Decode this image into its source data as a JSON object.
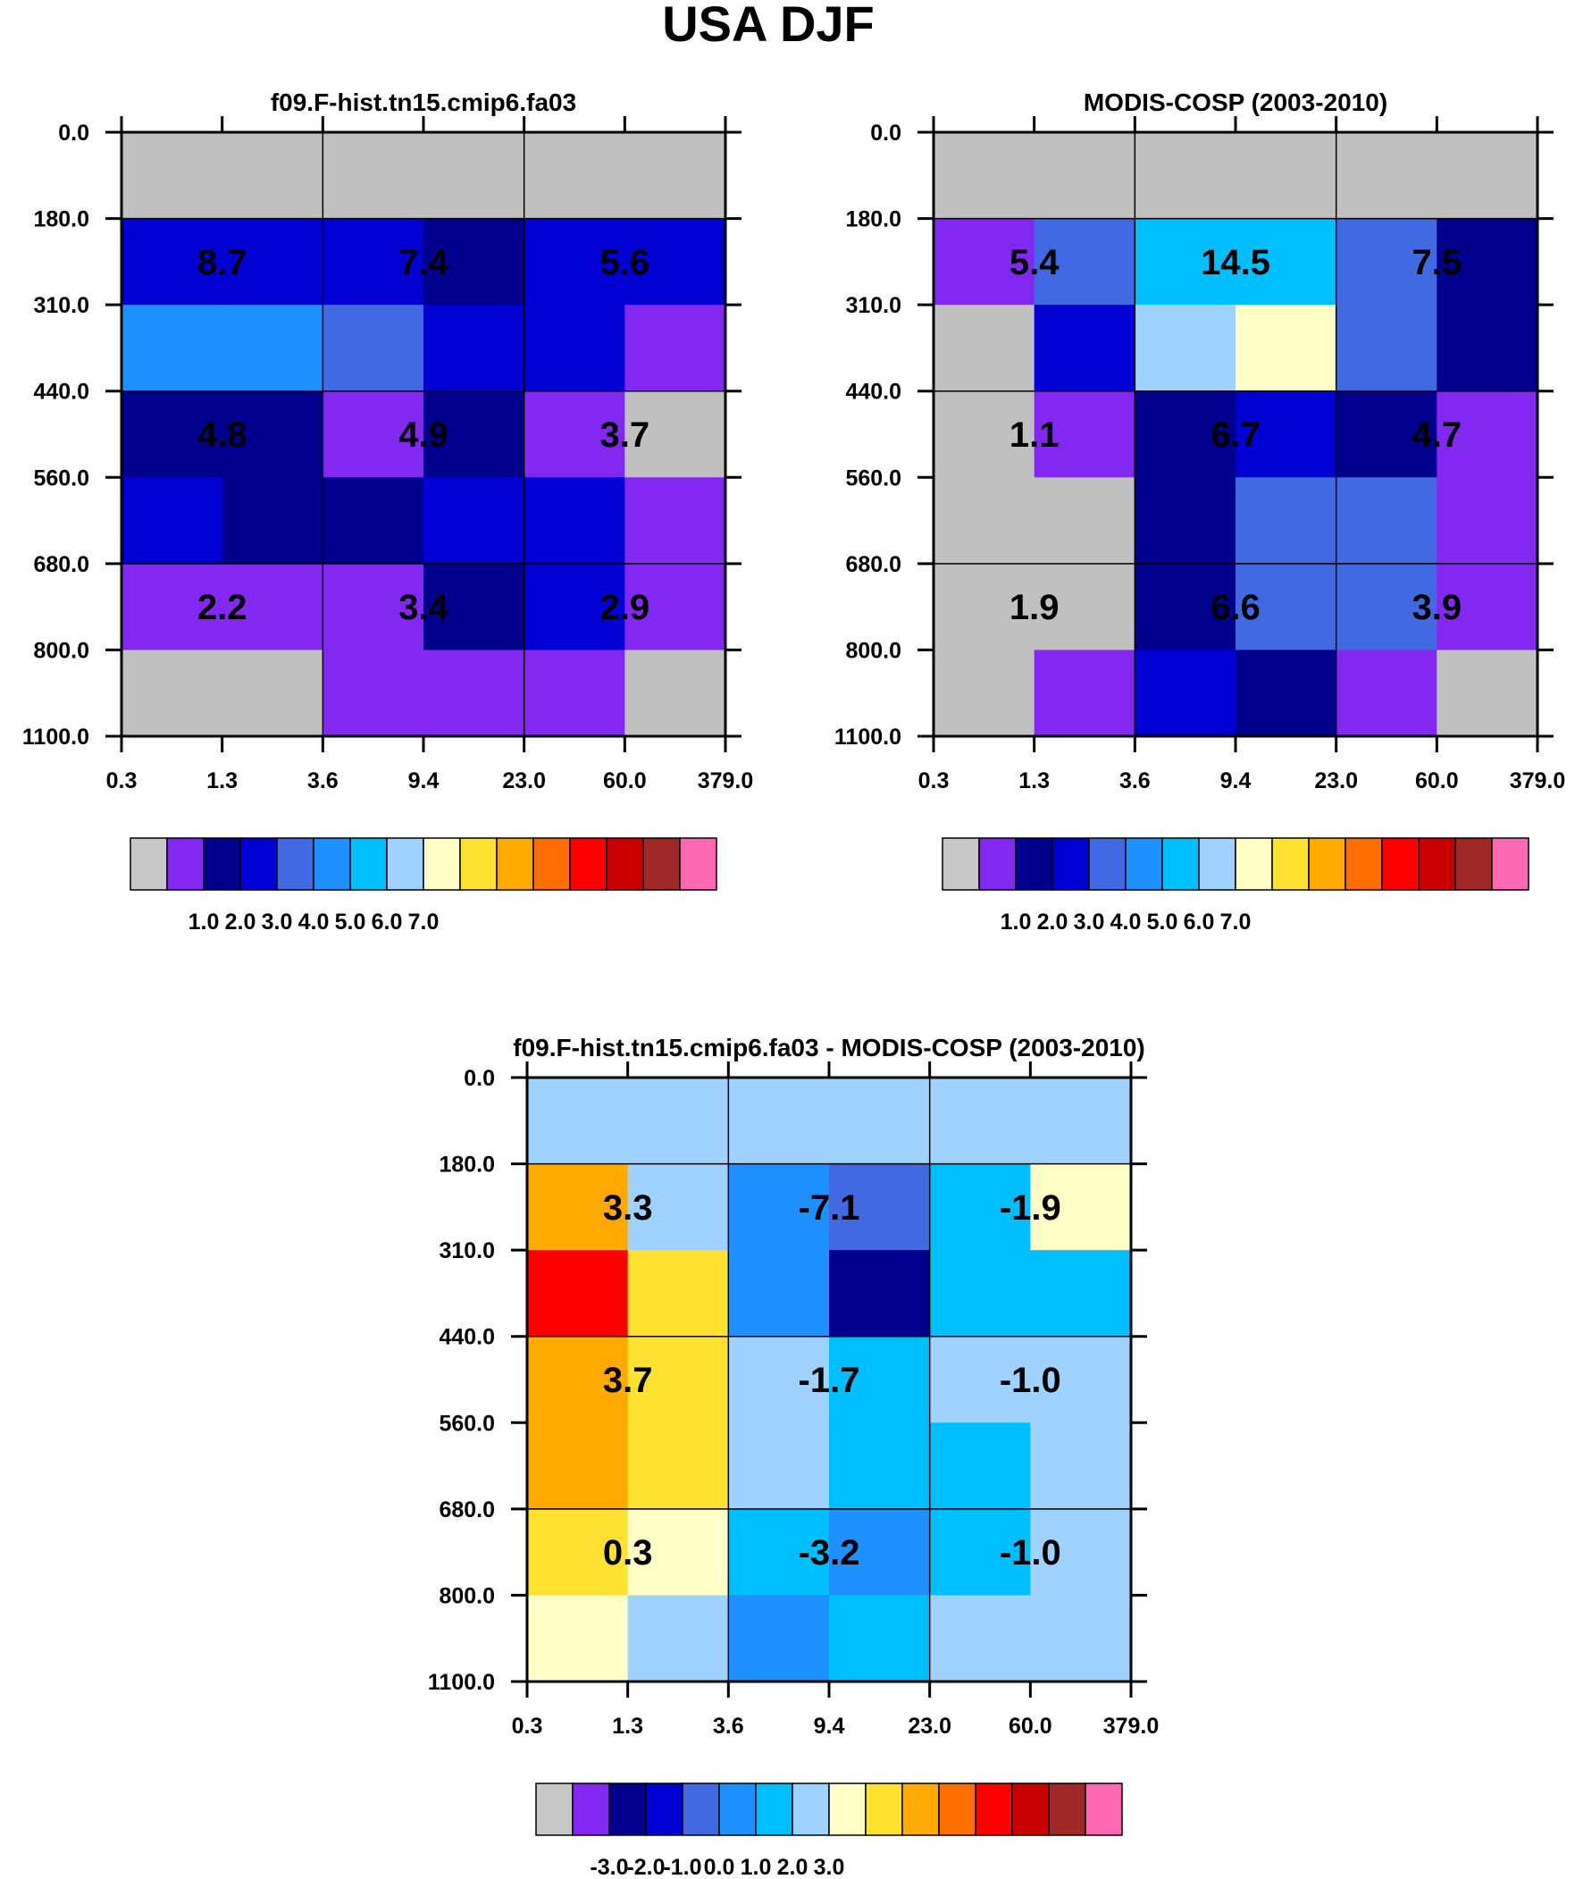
{
  "title": "USA DJF",
  "y_ticks": [
    "0.0",
    "180.0",
    "310.0",
    "440.0",
    "560.0",
    "680.0",
    "800.0",
    "1100.0"
  ],
  "x_ticks": [
    "0.3",
    "1.3",
    "3.6",
    "9.4",
    "23.0",
    "60.0",
    "379.0"
  ],
  "palette": [
    "#c8c8c8",
    "#8228f0",
    "#00008c",
    "#0000d2",
    "#4169e1",
    "#1e90ff",
    "#00bfff",
    "#a0d2ff",
    "#ffffc8",
    "#ffe132",
    "#ffaa00",
    "#ff6e00",
    "#ff0000",
    "#c80000",
    "#a02828",
    "#ff69b4"
  ],
  "chart_data": [
    {
      "type": "heatmap",
      "title": "f09.F-hist.tn15.cmip6.fa03",
      "ylim": [
        1100.0,
        0.0
      ],
      "grid": true,
      "cells": [
        [
          "#c0c0c0",
          "#c0c0c0",
          "#c0c0c0",
          "#c0c0c0",
          "#c0c0c0",
          "#c0c0c0"
        ],
        [
          "#0000d2",
          "#0000d2",
          "#0000d2",
          "#00008c",
          "#0000d2",
          "#0000d2"
        ],
        [
          "#1e90ff",
          "#1e90ff",
          "#4169e1",
          "#0000d2",
          "#0000d2",
          "#8228f0"
        ],
        [
          "#00008c",
          "#00008c",
          "#8228f0",
          "#00008c",
          "#8228f0",
          "#c0c0c0"
        ],
        [
          "#0000d2",
          "#00008c",
          "#00008c",
          "#0000d2",
          "#0000d2",
          "#8228f0"
        ],
        [
          "#8228f0",
          "#8228f0",
          "#8228f0",
          "#00008c",
          "#0000d2",
          "#8228f0"
        ],
        [
          "#c0c0c0",
          "#c0c0c0",
          "#8228f0",
          "#8228f0",
          "#8228f0",
          "#c0c0c0"
        ]
      ],
      "labels": [
        [
          "8.7",
          "7.4",
          "5.6"
        ],
        [
          "4.8",
          "4.9",
          "3.7"
        ],
        [
          "2.2",
          "3.4",
          "2.9"
        ]
      ],
      "colorbar": {
        "labels": [
          "1.0",
          "2.0",
          "3.0",
          "4.0",
          "5.0",
          "6.0",
          "7.0"
        ]
      }
    },
    {
      "type": "heatmap",
      "title": "MODIS-COSP (2003-2010)",
      "ylim": [
        1100.0,
        0.0
      ],
      "grid": true,
      "cells": [
        [
          "#c0c0c0",
          "#c0c0c0",
          "#c0c0c0",
          "#c0c0c0",
          "#c0c0c0",
          "#c0c0c0"
        ],
        [
          "#8228f0",
          "#4169e1",
          "#00bfff",
          "#00bfff",
          "#4169e1",
          "#00008c"
        ],
        [
          "#c0c0c0",
          "#0000d2",
          "#a0d2ff",
          "#ffffc8",
          "#4169e1",
          "#00008c"
        ],
        [
          "#c0c0c0",
          "#8228f0",
          "#00008c",
          "#0000d2",
          "#00008c",
          "#8228f0"
        ],
        [
          "#c0c0c0",
          "#c0c0c0",
          "#00008c",
          "#4169e1",
          "#4169e1",
          "#8228f0"
        ],
        [
          "#c0c0c0",
          "#c0c0c0",
          "#00008c",
          "#4169e1",
          "#4169e1",
          "#8228f0"
        ],
        [
          "#c0c0c0",
          "#8228f0",
          "#0000d2",
          "#00008c",
          "#8228f0",
          "#c0c0c0"
        ]
      ],
      "labels": [
        [
          "5.4",
          "14.5",
          "7.5"
        ],
        [
          "1.1",
          "6.7",
          "4.7"
        ],
        [
          "1.9",
          "6.6",
          "3.9"
        ]
      ],
      "colorbar": {
        "labels": [
          "1.0",
          "2.0",
          "3.0",
          "4.0",
          "5.0",
          "6.0",
          "7.0"
        ]
      }
    },
    {
      "type": "heatmap",
      "title": "f09.F-hist.tn15.cmip6.fa03 - MODIS-COSP (2003-2010)",
      "ylim": [
        1100.0,
        0.0
      ],
      "grid": true,
      "cells": [
        [
          "#a0d2ff",
          "#a0d2ff",
          "#a0d2ff",
          "#a0d2ff",
          "#a0d2ff",
          "#a0d2ff"
        ],
        [
          "#ffaa00",
          "#a0d2ff",
          "#1e90ff",
          "#4169e1",
          "#00bfff",
          "#ffffc8"
        ],
        [
          "#ff0000",
          "#ffe132",
          "#1e90ff",
          "#00008c",
          "#00bfff",
          "#00bfff"
        ],
        [
          "#ffaa00",
          "#ffe132",
          "#a0d2ff",
          "#00bfff",
          "#a0d2ff",
          "#a0d2ff"
        ],
        [
          "#ffaa00",
          "#ffe132",
          "#a0d2ff",
          "#00bfff",
          "#00bfff",
          "#a0d2ff"
        ],
        [
          "#ffe132",
          "#ffffc8",
          "#00bfff",
          "#1e90ff",
          "#00bfff",
          "#a0d2ff"
        ],
        [
          "#ffffc8",
          "#a0d2ff",
          "#1e90ff",
          "#00bfff",
          "#a0d2ff",
          "#a0d2ff"
        ]
      ],
      "labels": [
        [
          "3.3",
          "-7.1",
          "-1.9"
        ],
        [
          "3.7",
          "-1.7",
          "-1.0"
        ],
        [
          "0.3",
          "-3.2",
          "-1.0"
        ]
      ],
      "colorbar": {
        "labels": [
          "-3.0",
          "-2.0",
          "-1.0",
          "0.0",
          "1.0",
          "2.0",
          "3.0"
        ]
      }
    }
  ]
}
